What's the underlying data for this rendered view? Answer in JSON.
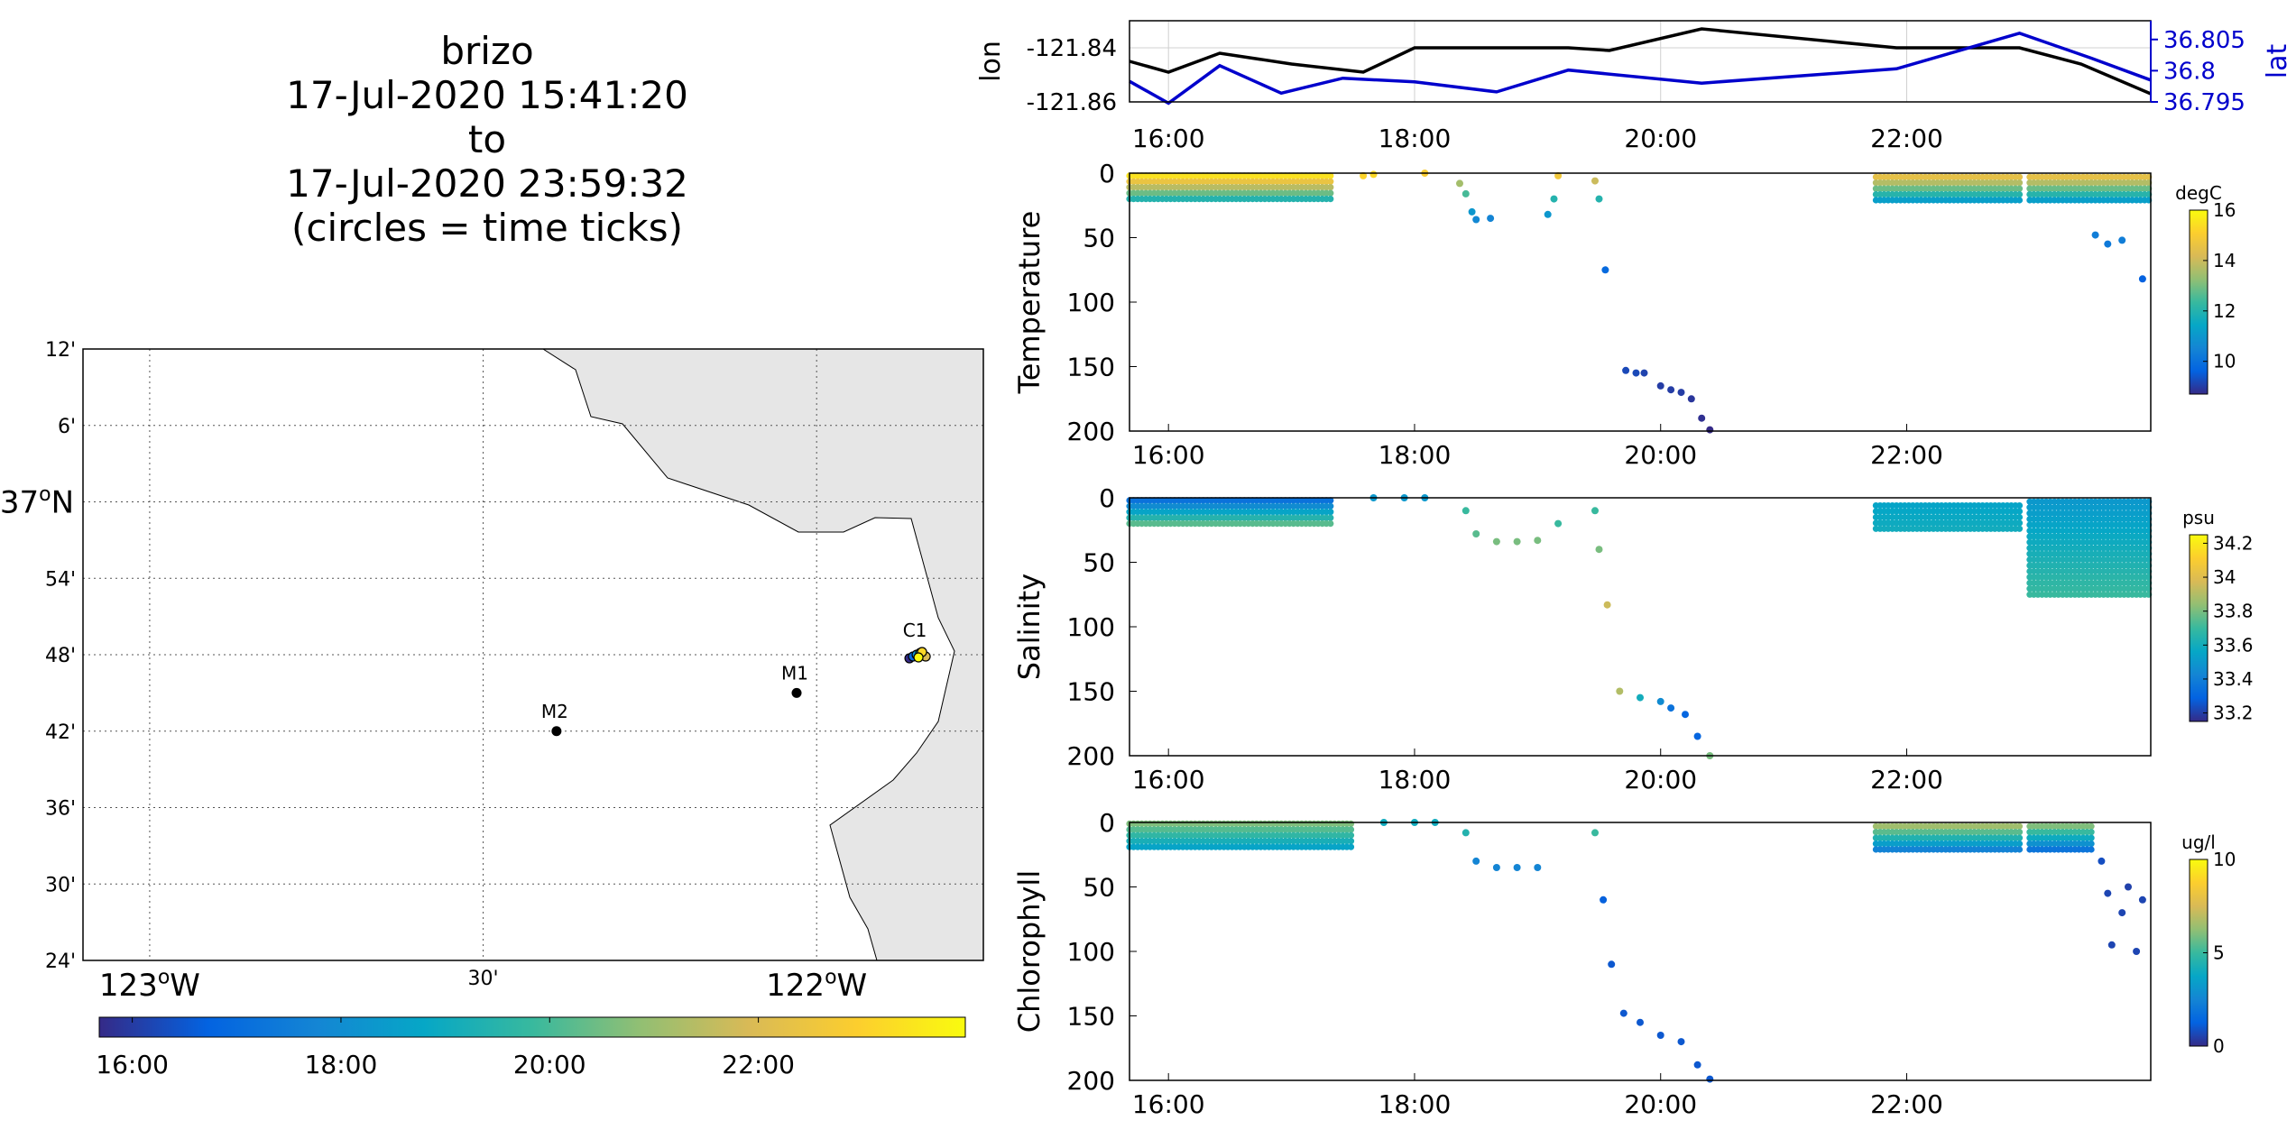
{
  "header": {
    "lines": [
      "brizo",
      "17-Jul-2020 15:41:20",
      "to",
      "17-Jul-2020 23:59:32",
      "(circles = time ticks)"
    ]
  },
  "colors": {
    "depth_series": "#000000",
    "lat_series": "#0000cc",
    "land": "#e6e6e6"
  },
  "chart_data": [
    {
      "type": "map",
      "lat_tick_labels": [
        "12'",
        "6'",
        "37ºN",
        "54'",
        "48'",
        "42'",
        "36'",
        "30'",
        "24'"
      ],
      "lat_ticks": [
        37.2,
        37.1,
        37.0,
        36.9,
        36.8,
        36.7,
        36.6,
        36.5,
        36.4
      ],
      "lon_tick_labels": [
        "123ºW",
        "30'",
        "122ºW"
      ],
      "lon_ticks": [
        -123.0,
        -122.5,
        -122.0
      ],
      "xlim": [
        -123.1,
        -121.75
      ],
      "ylim": [
        36.4,
        37.2
      ],
      "grid": true,
      "stations": [
        {
          "name": "M2",
          "lon": -122.39,
          "lat": 36.7
        },
        {
          "name": "M1",
          "lon": -122.03,
          "lat": 36.75
        },
        {
          "name": "C1",
          "lon": -121.85,
          "lat": 36.8
        }
      ],
      "track_label": "C1",
      "colorbar": {
        "orientation": "horizontal",
        "tick_labels": [
          "16:00",
          "18:00",
          "20:00",
          "22:00"
        ],
        "range": [
          "15:41",
          "23:59"
        ]
      }
    },
    {
      "type": "line",
      "x_tick_labels": [
        "16:00",
        "18:00",
        "20:00",
        "22:00"
      ],
      "ylabel_left": "lon",
      "ylabel_right": "lat",
      "ylim_left": [
        -121.86,
        -121.83
      ],
      "y_tick_labels_left": [
        "-121.84",
        "-121.86"
      ],
      "ylim_right": [
        36.795,
        36.808
      ],
      "y_tick_labels_right": [
        "36.805",
        "36.8",
        "36.795"
      ],
      "grid": true,
      "series": [
        {
          "name": "lon",
          "axis": "left",
          "x": [
            "15:41",
            "16:00",
            "16:25",
            "17:00",
            "17:35",
            "18:00",
            "18:40",
            "19:15",
            "19:35",
            "20:20",
            "21:55",
            "22:15",
            "22:55",
            "23:25",
            "23:59"
          ],
          "values": [
            -121.845,
            -121.849,
            -121.842,
            -121.846,
            -121.849,
            -121.84,
            -121.84,
            -121.84,
            -121.841,
            -121.833,
            -121.84,
            -121.84,
            -121.84,
            -121.846,
            -121.857
          ]
        },
        {
          "name": "lat",
          "axis": "right",
          "x": [
            "15:41",
            "16:00",
            "16:25",
            "16:55",
            "17:25",
            "18:00",
            "18:40",
            "19:15",
            "20:20",
            "21:55",
            "22:55",
            "23:30",
            "23:59"
          ],
          "values": [
            36.7983,
            36.7948,
            36.8008,
            36.7964,
            36.7988,
            36.7982,
            36.7966,
            36.8001,
            36.798,
            36.8003,
            36.806,
            36.802,
            36.7985
          ]
        }
      ]
    },
    {
      "type": "scatter",
      "ylabel": "Temperature",
      "y_reversed": true,
      "ylim": [
        0,
        200
      ],
      "y_tick_labels": [
        "0",
        "50",
        "100",
        "150",
        "200"
      ],
      "x_tick_labels": [
        "16:00",
        "18:00",
        "20:00",
        "22:00"
      ],
      "colorbar": {
        "unit": "degC",
        "tick_labels": [
          "16",
          "14",
          "12",
          "10"
        ],
        "range": [
          8.7,
          16
        ]
      },
      "profiles": [
        {
          "t_start": "15:41",
          "t_end": "17:20",
          "depth_min": 2,
          "depth_max": 20,
          "value_top": 15.5,
          "value_bottom": 12.0
        },
        {
          "t_start": "21:45",
          "t_end": "22:55",
          "depth_min": 3,
          "depth_max": 25,
          "value_top": 14.5,
          "value_bottom": 10.5
        },
        {
          "t_start": "23:00",
          "t_end": "23:59",
          "depth_min": 3,
          "depth_max": 25,
          "value_top": 14.5,
          "value_bottom": 10.5
        }
      ],
      "points": [
        {
          "x": "17:35",
          "y": 2,
          "v": 15.2
        },
        {
          "x": "17:40",
          "y": 1,
          "v": 15.3
        },
        {
          "x": "18:05",
          "y": 0,
          "v": 15.0
        },
        {
          "x": "18:22",
          "y": 8,
          "v": 13.5
        },
        {
          "x": "18:25",
          "y": 16,
          "v": 12.5
        },
        {
          "x": "18:28",
          "y": 30,
          "v": 11.0
        },
        {
          "x": "18:30",
          "y": 36,
          "v": 10.6
        },
        {
          "x": "18:37",
          "y": 35,
          "v": 10.5
        },
        {
          "x": "19:05",
          "y": 32,
          "v": 11.0
        },
        {
          "x": "19:08",
          "y": 20,
          "v": 12.0
        },
        {
          "x": "19:10",
          "y": 2,
          "v": 14.8
        },
        {
          "x": "19:28",
          "y": 6,
          "v": 14.0
        },
        {
          "x": "19:30",
          "y": 20,
          "v": 12.0
        },
        {
          "x": "19:33",
          "y": 75,
          "v": 9.8
        },
        {
          "x": "19:43",
          "y": 153,
          "v": 9.2
        },
        {
          "x": "19:48",
          "y": 155,
          "v": 9.2
        },
        {
          "x": "19:52",
          "y": 155,
          "v": 9.1
        },
        {
          "x": "20:00",
          "y": 165,
          "v": 9.0
        },
        {
          "x": "20:05",
          "y": 168,
          "v": 9.0
        },
        {
          "x": "20:10",
          "y": 170,
          "v": 9.0
        },
        {
          "x": "20:15",
          "y": 175,
          "v": 8.9
        },
        {
          "x": "20:20",
          "y": 190,
          "v": 8.8
        },
        {
          "x": "20:24",
          "y": 199,
          "v": 8.7
        },
        {
          "x": "23:32",
          "y": 48,
          "v": 10.3
        },
        {
          "x": "23:38",
          "y": 55,
          "v": 10.2
        },
        {
          "x": "23:45",
          "y": 52,
          "v": 10.3
        },
        {
          "x": "23:55",
          "y": 82,
          "v": 9.6
        }
      ]
    },
    {
      "type": "scatter",
      "ylabel": "Salinity",
      "y_reversed": true,
      "ylim": [
        0,
        200
      ],
      "y_tick_labels": [
        "0",
        "50",
        "100",
        "150",
        "200"
      ],
      "x_tick_labels": [
        "16:00",
        "18:00",
        "20:00",
        "22:00"
      ],
      "colorbar": {
        "unit": "psu",
        "tick_labels": [
          "34.2",
          "34",
          "33.8",
          "33.6",
          "33.4",
          "33.2"
        ],
        "range": [
          33.15,
          34.25
        ]
      },
      "profiles": [
        {
          "t_start": "15:41",
          "t_end": "17:20",
          "depth_min": 2,
          "depth_max": 20,
          "value_top": 33.35,
          "value_bottom": 33.75
        },
        {
          "t_start": "21:45",
          "t_end": "22:55",
          "depth_min": 6,
          "depth_max": 26,
          "value_top": 33.55,
          "value_bottom": 33.6
        },
        {
          "t_start": "23:00",
          "t_end": "23:59",
          "depth_min": 3,
          "depth_max": 75,
          "value_top": 33.5,
          "value_bottom": 33.7
        }
      ],
      "points": [
        {
          "x": "17:40",
          "y": 0,
          "v": 33.5
        },
        {
          "x": "17:55",
          "y": 0,
          "v": 33.5
        },
        {
          "x": "18:05",
          "y": 0,
          "v": 33.5
        },
        {
          "x": "18:25",
          "y": 10,
          "v": 33.7
        },
        {
          "x": "18:30",
          "y": 28,
          "v": 33.75
        },
        {
          "x": "18:40",
          "y": 34,
          "v": 33.8
        },
        {
          "x": "18:50",
          "y": 34,
          "v": 33.8
        },
        {
          "x": "19:00",
          "y": 33,
          "v": 33.8
        },
        {
          "x": "19:10",
          "y": 20,
          "v": 33.7
        },
        {
          "x": "19:28",
          "y": 10,
          "v": 33.7
        },
        {
          "x": "19:30",
          "y": 40,
          "v": 33.8
        },
        {
          "x": "19:34",
          "y": 83,
          "v": 33.95
        },
        {
          "x": "19:40",
          "y": 150,
          "v": 33.9
        },
        {
          "x": "19:50",
          "y": 155,
          "v": 33.6
        },
        {
          "x": "20:00",
          "y": 158,
          "v": 33.45
        },
        {
          "x": "20:05",
          "y": 163,
          "v": 33.35
        },
        {
          "x": "20:12",
          "y": 168,
          "v": 33.3
        },
        {
          "x": "20:18",
          "y": 185,
          "v": 33.3
        },
        {
          "x": "20:24",
          "y": 200,
          "v": 33.8
        }
      ]
    },
    {
      "type": "scatter",
      "ylabel": "Chlorophyll",
      "y_reversed": true,
      "ylim": [
        0,
        200
      ],
      "y_tick_labels": [
        "0",
        "50",
        "100",
        "150",
        "200"
      ],
      "x_tick_labels": [
        "16:00",
        "18:00",
        "20:00",
        "22:00"
      ],
      "colorbar": {
        "unit": "ug/l",
        "tick_labels": [
          "10",
          "5",
          "0"
        ],
        "range": [
          0,
          10
        ]
      },
      "profiles": [
        {
          "t_start": "15:41",
          "t_end": "17:30",
          "depth_min": 1,
          "depth_max": 20,
          "value_top": 6.0,
          "value_bottom": 3.5
        },
        {
          "t_start": "21:45",
          "t_end": "22:55",
          "depth_min": 3,
          "depth_max": 25,
          "value_top": 6.5,
          "value_bottom": 1.5
        },
        {
          "t_start": "23:00",
          "t_end": "23:30",
          "depth_min": 3,
          "depth_max": 25,
          "value_top": 6.0,
          "value_bottom": 1.0
        }
      ],
      "points": [
        {
          "x": "17:45",
          "y": 0,
          "v": 4.0
        },
        {
          "x": "18:00",
          "y": 0,
          "v": 4.0
        },
        {
          "x": "18:10",
          "y": 0,
          "v": 4.0
        },
        {
          "x": "18:25",
          "y": 8,
          "v": 4.5
        },
        {
          "x": "18:30",
          "y": 30,
          "v": 2.5
        },
        {
          "x": "18:40",
          "y": 35,
          "v": 2.5
        },
        {
          "x": "18:50",
          "y": 35,
          "v": 2.5
        },
        {
          "x": "19:00",
          "y": 35,
          "v": 2.5
        },
        {
          "x": "19:28",
          "y": 8,
          "v": 5.0
        },
        {
          "x": "19:32",
          "y": 60,
          "v": 1.2
        },
        {
          "x": "19:36",
          "y": 110,
          "v": 1.0
        },
        {
          "x": "19:42",
          "y": 148,
          "v": 1.0
        },
        {
          "x": "19:50",
          "y": 155,
          "v": 1.0
        },
        {
          "x": "20:00",
          "y": 165,
          "v": 1.0
        },
        {
          "x": "20:10",
          "y": 170,
          "v": 1.0
        },
        {
          "x": "20:18",
          "y": 188,
          "v": 1.0
        },
        {
          "x": "20:24",
          "y": 199,
          "v": 1.0
        },
        {
          "x": "23:35",
          "y": 30,
          "v": 0.8
        },
        {
          "x": "23:38",
          "y": 55,
          "v": 0.6
        },
        {
          "x": "23:40",
          "y": 95,
          "v": 0.6
        },
        {
          "x": "23:45",
          "y": 70,
          "v": 0.6
        },
        {
          "x": "23:48",
          "y": 50,
          "v": 0.5
        },
        {
          "x": "23:52",
          "y": 100,
          "v": 0.6
        },
        {
          "x": "23:55",
          "y": 60,
          "v": 0.6
        }
      ]
    }
  ]
}
